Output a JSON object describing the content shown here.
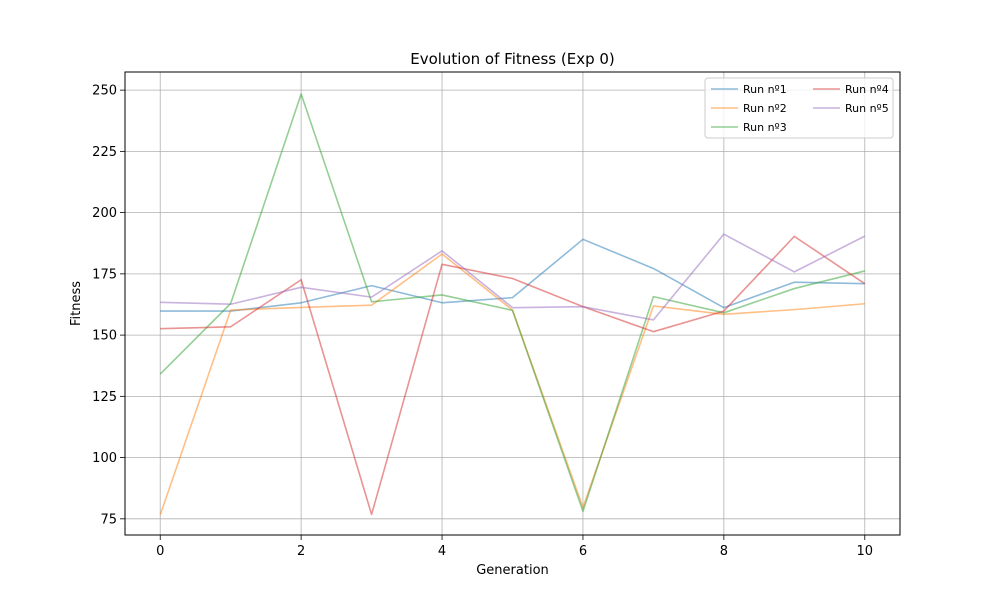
{
  "chart_data": {
    "type": "line",
    "title": "Evolution of Fitness (Exp 0)",
    "xlabel": "Generation",
    "ylabel": "Fitness",
    "xlim": [
      -0.5,
      10.5
    ],
    "ylim": [
      68.4,
      257.4
    ],
    "x": [
      0,
      1,
      2,
      3,
      4,
      5,
      6,
      7,
      8,
      9,
      10
    ],
    "xticks": [
      0,
      2,
      4,
      6,
      8,
      10
    ],
    "yticks": [
      75,
      100,
      125,
      150,
      175,
      200,
      225,
      250
    ],
    "grid": true,
    "legend_position": "top-right",
    "legend_columns": 2,
    "series": [
      {
        "name": "Run nº1",
        "color": "#1f77b4",
        "values": [
          159.8,
          159.8,
          163.2,
          170.2,
          163.2,
          165.3,
          189.1,
          177.2,
          161.2,
          171.6,
          171.0
        ]
      },
      {
        "name": "Run nº2",
        "color": "#ff7f0e",
        "values": [
          76.6,
          160.2,
          161.3,
          162.2,
          183.1,
          160.2,
          79.6,
          161.9,
          158.5,
          160.4,
          162.8
        ]
      },
      {
        "name": "Run nº3",
        "color": "#2ca02c",
        "values": [
          134.1,
          162.9,
          248.4,
          163.6,
          166.4,
          160.1,
          78.1,
          165.7,
          159.1,
          169.0,
          176.2
        ]
      },
      {
        "name": "Run nº4",
        "color": "#d62728",
        "values": [
          152.6,
          153.4,
          172.6,
          76.8,
          178.9,
          173.1,
          161.6,
          151.4,
          159.8,
          190.3,
          171.0
        ]
      },
      {
        "name": "Run nº5",
        "color": "#9467bd",
        "values": [
          163.4,
          162.6,
          169.5,
          165.5,
          184.4,
          161.2,
          161.6,
          156.2,
          191.2,
          175.8,
          190.4
        ]
      }
    ]
  }
}
